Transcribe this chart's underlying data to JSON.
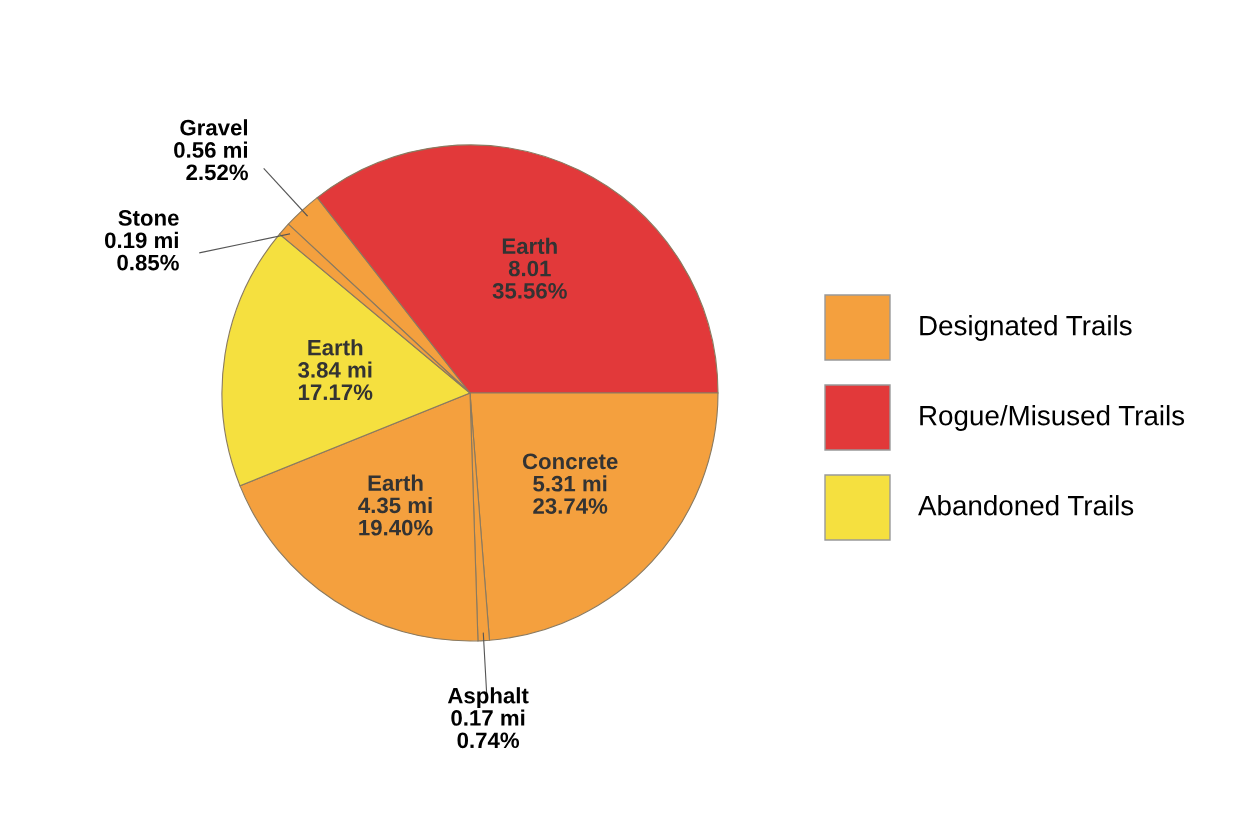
{
  "chart_data": {
    "type": "pie",
    "categories": [
      "Gravel",
      "Earth",
      "Concrete",
      "Asphalt",
      "Earth",
      "Earth",
      "Stone"
    ],
    "values": [
      2.52,
      35.56,
      23.74,
      0.74,
      19.4,
      17.17,
      0.85
    ],
    "colors": [
      "#f4a03e",
      "#e2393a",
      "#f4a03e",
      "#f4a03e",
      "#f4a03e",
      "#f5e03f",
      "#f4a03e"
    ],
    "value_labels": [
      "0.56 mi\n2.52%",
      "8.01\n35.56%",
      "5.31 mi\n23.74%",
      "0.17 mi\n0.74%",
      "4.35 mi\n19.40%",
      "3.84 mi\n17.17%",
      "0.19 mi\n0.85%"
    ],
    "annotations": [
      "Designated Trails",
      "Rogue/Misused Trails",
      "Abandoned Trails"
    ]
  }
}
